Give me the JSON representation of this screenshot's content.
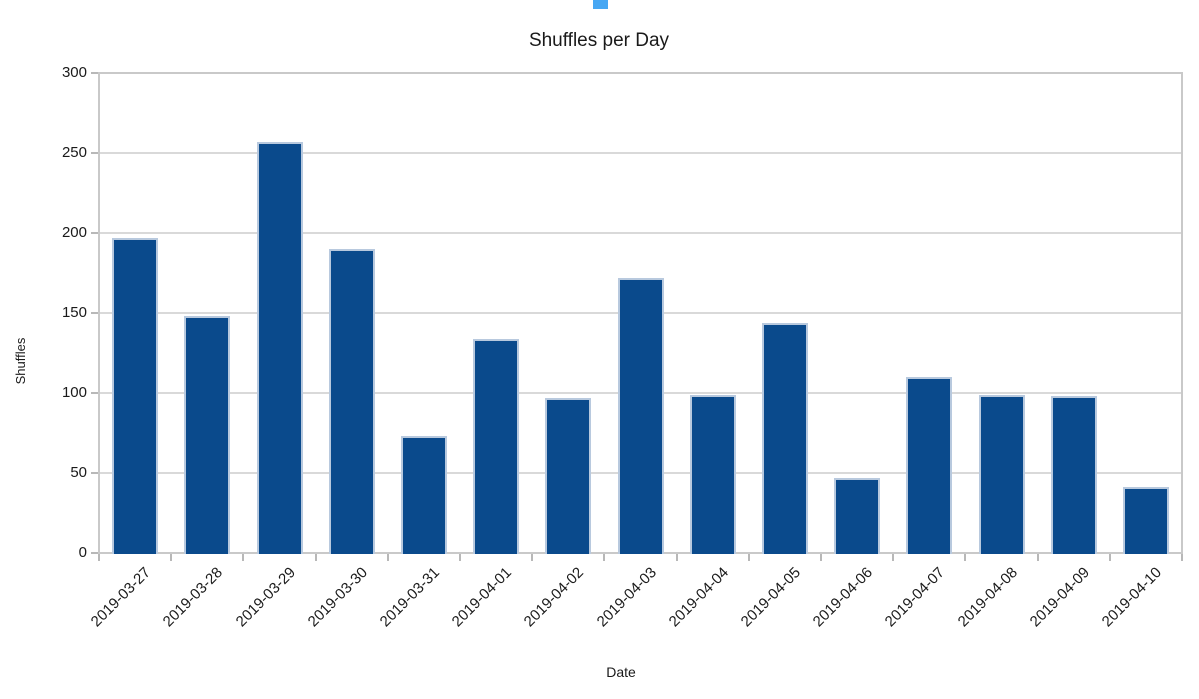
{
  "artifact": {
    "name": "partial blue UI element cut off at top edge of screenshot",
    "color": "#47a7f3"
  },
  "chart_data": {
    "type": "bar",
    "title": "Shuffles per Day",
    "xlabel": "Date",
    "ylabel": "Shuffles",
    "categories": [
      "2019-03-27",
      "2019-03-28",
      "2019-03-29",
      "2019-03-30",
      "2019-03-31",
      "2019-04-01",
      "2019-04-02",
      "2019-04-03",
      "2019-04-04",
      "2019-04-05",
      "2019-04-06",
      "2019-04-07",
      "2019-04-08",
      "2019-04-09",
      "2019-04-10"
    ],
    "values": [
      197,
      148,
      257,
      190,
      73,
      134,
      97,
      172,
      99,
      144,
      47,
      110,
      99,
      98,
      41
    ],
    "ylim": [
      0,
      300
    ],
    "yticks": [
      0,
      50,
      100,
      150,
      200,
      250,
      300
    ],
    "grid": true,
    "legend": "none",
    "bar_color": "#0a4a8c",
    "bar_edge_color": "#b8c9de",
    "gridline_color": "#d9d9d9",
    "plot_border_color": "#c9c9c9",
    "tick_color": "#b8b8b8",
    "text_color": "#1a1a1a"
  }
}
